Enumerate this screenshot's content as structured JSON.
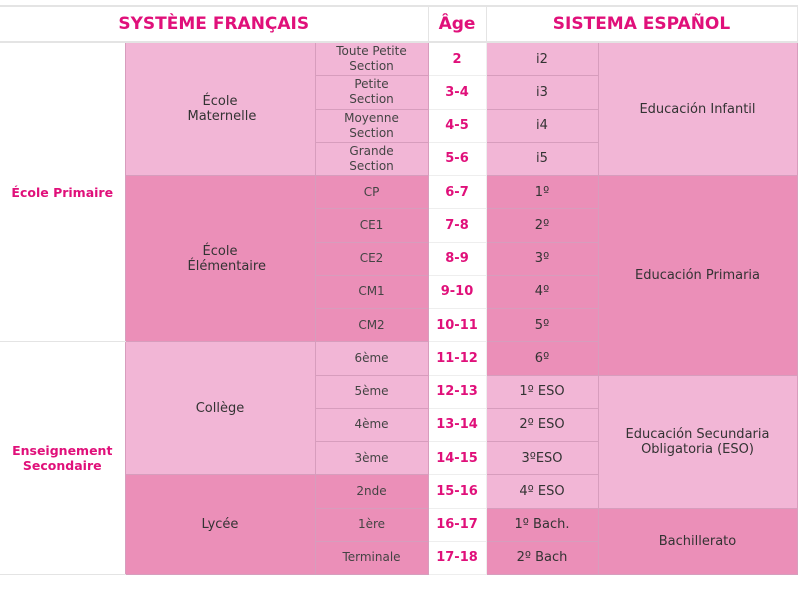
{
  "header": {
    "fr": "SYSTÈME FRANÇAIS",
    "age": "Âge",
    "es": "SISTEMA ESPAÑOL"
  },
  "colors": {
    "accent": "#e0107a",
    "light_pink": "#f2b6d6",
    "dark_pink": "#eb8fb8"
  },
  "levels": [
    {
      "label": "École Primaire",
      "rows": 9
    },
    {
      "label": "Enseignement Secondaire",
      "rows": 7
    }
  ],
  "schools": [
    {
      "label": "École Maternelle",
      "rows": 4,
      "shade": "light"
    },
    {
      "label": "École Élémentaire",
      "rows": 5,
      "shade": "dark"
    },
    {
      "label": "Collège",
      "rows": 4,
      "shade": "light"
    },
    {
      "label": "Lycée",
      "rows": 3,
      "shade": "dark"
    }
  ],
  "rows": [
    {
      "class": "Toute Petite Section",
      "age": "2",
      "es_course": "i2"
    },
    {
      "class": "Petite Section",
      "age": "3-4",
      "es_course": "i3"
    },
    {
      "class": "Moyenne Section",
      "age": "4-5",
      "es_course": "i4"
    },
    {
      "class": "Grande Section",
      "age": "5-6",
      "es_course": "i5"
    },
    {
      "class": "CP",
      "age": "6-7",
      "es_course": "1º"
    },
    {
      "class": "CE1",
      "age": "7-8",
      "es_course": "2º"
    },
    {
      "class": "CE2",
      "age": "8-9",
      "es_course": "3º"
    },
    {
      "class": "CM1",
      "age": "9-10",
      "es_course": "4º"
    },
    {
      "class": "CM2",
      "age": "10-11",
      "es_course": "5º"
    },
    {
      "class": "6ème",
      "age": "11-12",
      "es_course": "6º"
    },
    {
      "class": "5ème",
      "age": "12-13",
      "es_course": "1º ESO"
    },
    {
      "class": "4ème",
      "age": "13-14",
      "es_course": "2º ESO"
    },
    {
      "class": "3ème",
      "age": "14-15",
      "es_course": "3ºESO"
    },
    {
      "class": "2nde",
      "age": "15-16",
      "es_course": "4º ESO"
    },
    {
      "class": "1ère",
      "age": "16-17",
      "es_course": "1º Bach."
    },
    {
      "class": "Terminale",
      "age": "17-18",
      "es_course": "2º Bach"
    }
  ],
  "es_stages": [
    {
      "label": "Educación Infantil",
      "rows": 4,
      "shade": "light"
    },
    {
      "label": "Educación Primaria",
      "rows": 6,
      "shade": "dark"
    },
    {
      "label": "Educación Secundaria Obligatoria (ESO)",
      "rows": 4,
      "shade": "light"
    },
    {
      "label": "Bachillerato",
      "rows": 2,
      "shade": "dark"
    }
  ]
}
